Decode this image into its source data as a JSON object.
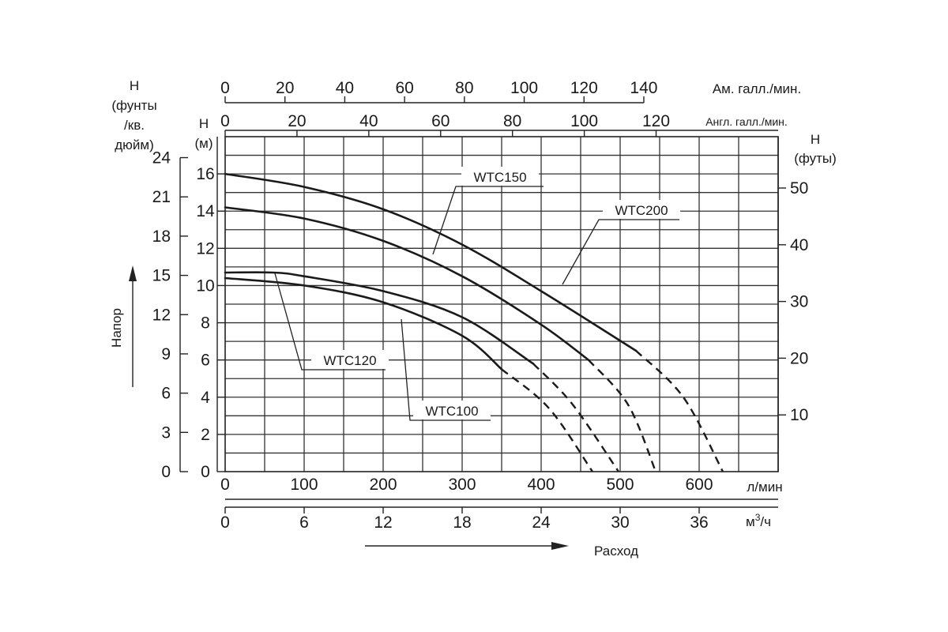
{
  "chart_data": {
    "type": "line",
    "title": "",
    "x_axes": {
      "lpm": {
        "label": "л/мин",
        "ticks": [
          0,
          100,
          200,
          300,
          400,
          500,
          600
        ],
        "range": [
          0,
          700
        ]
      },
      "m3h": {
        "label_base": "м",
        "label_sup": "3",
        "label_tail": "/ч",
        "ticks": [
          0,
          6,
          12,
          18,
          24,
          30,
          36
        ]
      },
      "us_gpm": {
        "label": "Ам. галл./мин.",
        "ticks": [
          0,
          20,
          40,
          60,
          80,
          100,
          120,
          140
        ]
      },
      "imp_gpm": {
        "label": "Англ. галл./мин.",
        "ticks": [
          0,
          20,
          40,
          60,
          80,
          100,
          120
        ]
      },
      "flow_label": "Расход"
    },
    "y_axes": {
      "m": {
        "label_line1": "H",
        "label_line2": "(м)",
        "ticks": [
          0,
          2,
          4,
          6,
          8,
          10,
          12,
          14,
          16
        ],
        "range": [
          0,
          18
        ]
      },
      "psi": {
        "label_line1": "H",
        "label_line2": "(фунты",
        "label_line3": "/кв.",
        "label_line4": "дюйм)",
        "ticks": [
          0,
          3,
          6,
          9,
          12,
          15,
          18,
          21,
          24
        ]
      },
      "ft": {
        "label_line1": "H",
        "label_line2": "(футы)",
        "ticks": [
          10,
          20,
          30,
          40,
          50
        ]
      },
      "head_label": "Напор"
    },
    "grid": true,
    "series": [
      {
        "name": "WTC150",
        "solid": [
          [
            0,
            16.0
          ],
          [
            100,
            15.3
          ],
          [
            200,
            14.1
          ],
          [
            300,
            12.2
          ],
          [
            400,
            9.7
          ],
          [
            520,
            6.5
          ]
        ],
        "dashed": [
          [
            520,
            6.5
          ],
          [
            580,
            4.0
          ],
          [
            630,
            0.0
          ]
        ]
      },
      {
        "name": "WTC200",
        "solid": [
          [
            0,
            14.2
          ],
          [
            100,
            13.6
          ],
          [
            200,
            12.4
          ],
          [
            300,
            10.5
          ],
          [
            400,
            7.9
          ],
          [
            460,
            6.0
          ]
        ],
        "dashed": [
          [
            460,
            6.0
          ],
          [
            510,
            3.6
          ],
          [
            545,
            0.0
          ]
        ]
      },
      {
        "name": "WTC120",
        "solid": [
          [
            0,
            10.7
          ],
          [
            60,
            10.7
          ],
          [
            100,
            10.5
          ],
          [
            200,
            9.7
          ],
          [
            300,
            8.3
          ],
          [
            390,
            5.8
          ]
        ],
        "dashed": [
          [
            390,
            5.8
          ],
          [
            440,
            3.6
          ],
          [
            498,
            0.0
          ]
        ]
      },
      {
        "name": "WTC100",
        "solid": [
          [
            0,
            10.4
          ],
          [
            100,
            10.0
          ],
          [
            200,
            9.1
          ],
          [
            300,
            7.3
          ],
          [
            350,
            5.5
          ]
        ],
        "dashed": [
          [
            350,
            5.5
          ],
          [
            410,
            3.4
          ],
          [
            465,
            0.0
          ]
        ]
      }
    ]
  }
}
